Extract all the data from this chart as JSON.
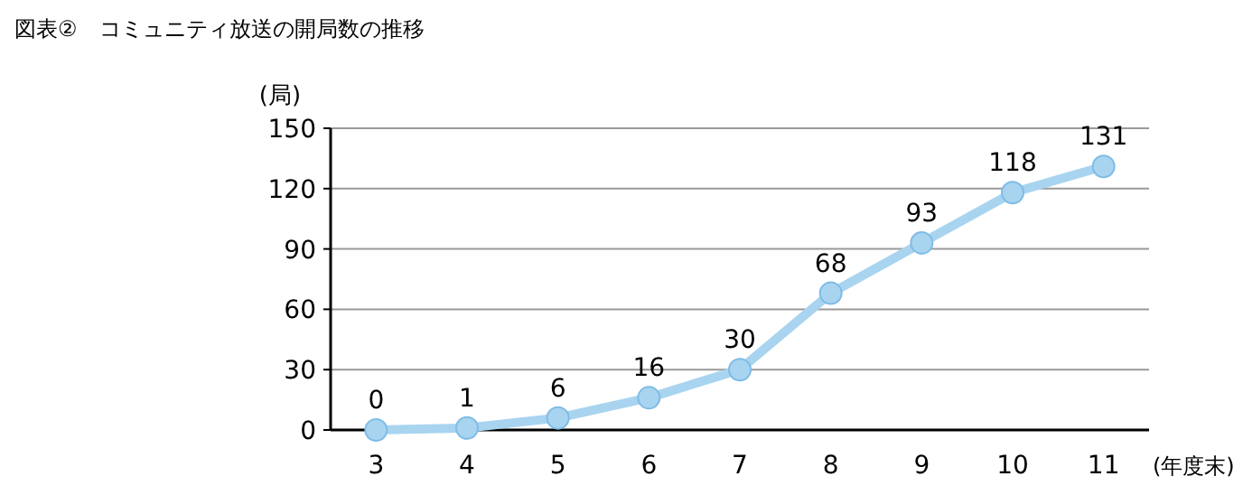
{
  "chart_data": {
    "type": "line",
    "title": "図表②　コミュニティ放送の開局数の推移",
    "xlabel": "(年度末)",
    "ylabel": "(局)",
    "categories": [
      "3",
      "4",
      "5",
      "6",
      "7",
      "8",
      "9",
      "10",
      "11"
    ],
    "series": [
      {
        "color": "#a8d4f0",
        "values": [
          0,
          1,
          6,
          16,
          30,
          68,
          93,
          118,
          131
        ]
      }
    ],
    "ylim": [
      0,
      150
    ],
    "yticks": [
      0,
      30,
      60,
      90,
      120,
      150
    ],
    "grid": "y",
    "data_labels": true,
    "marker": "circle"
  }
}
